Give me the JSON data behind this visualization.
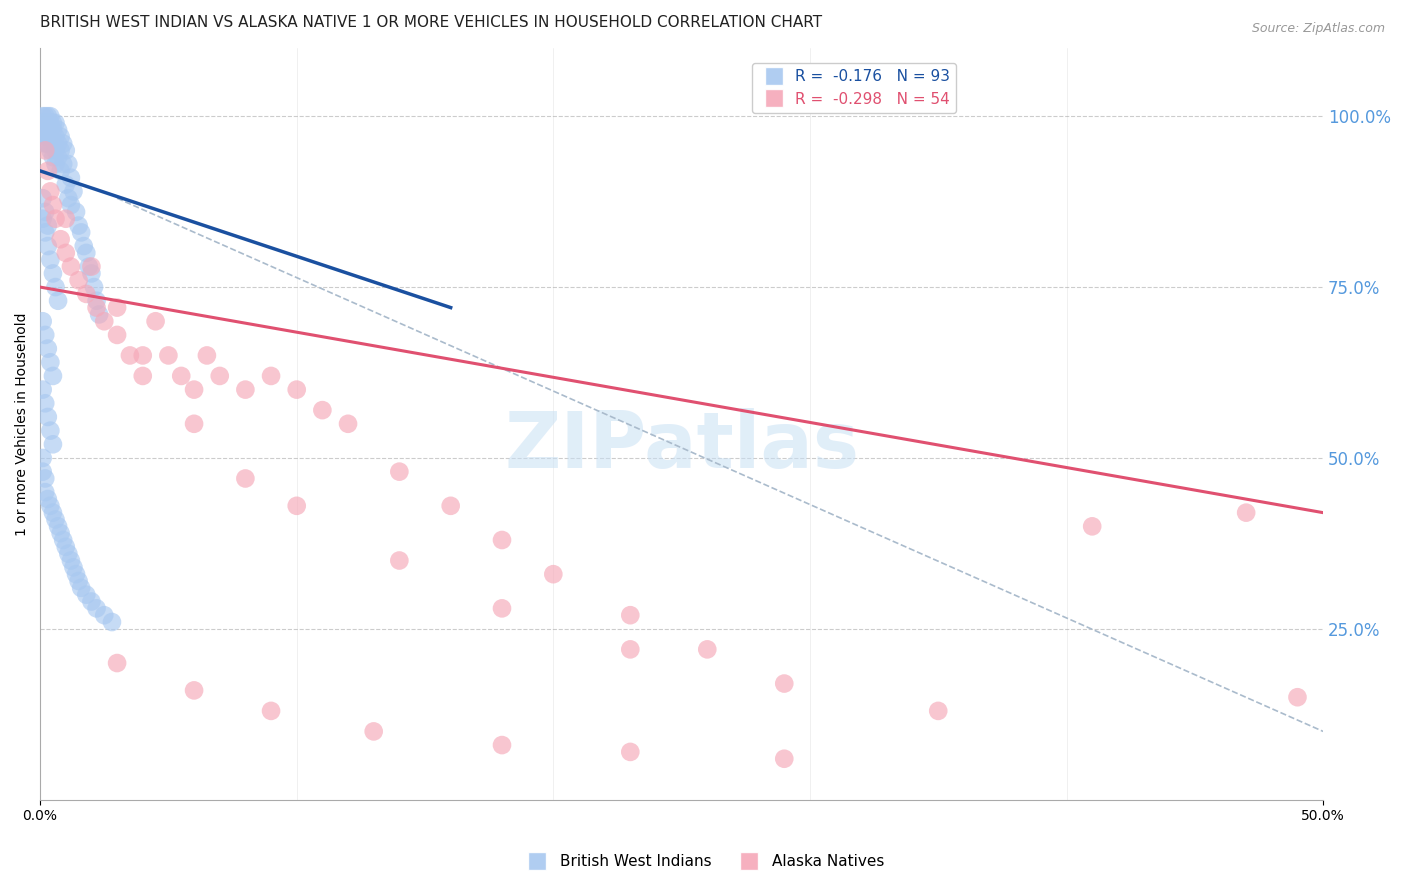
{
  "title": "BRITISH WEST INDIAN VS ALASKA NATIVE 1 OR MORE VEHICLES IN HOUSEHOLD CORRELATION CHART",
  "source": "Source: ZipAtlas.com",
  "ylabel": "1 or more Vehicles in Household",
  "xlim": [
    0.0,
    0.5
  ],
  "ylim": [
    0.0,
    1.1
  ],
  "yticks_right": [
    0.25,
    0.5,
    0.75,
    1.0
  ],
  "ytick_right_labels": [
    "25.0%",
    "50.0%",
    "75.0%",
    "100.0%"
  ],
  "xticks": [
    0.0,
    0.5
  ],
  "xtick_labels": [
    "0.0%",
    "50.0%"
  ],
  "blue_R": -0.176,
  "blue_N": 93,
  "pink_R": -0.298,
  "pink_N": 54,
  "blue_color": "#A8C8F0",
  "pink_color": "#F5A8B8",
  "blue_line_color": "#1A50A0",
  "pink_line_color": "#E05070",
  "dash_line_color": "#AABBCC",
  "legend_label_blue": "British West Indians",
  "legend_label_pink": "Alaska Natives",
  "blue_points_x": [
    0.001,
    0.001,
    0.001,
    0.002,
    0.002,
    0.002,
    0.002,
    0.002,
    0.003,
    0.003,
    0.003,
    0.003,
    0.003,
    0.004,
    0.004,
    0.004,
    0.004,
    0.005,
    0.005,
    0.005,
    0.005,
    0.006,
    0.006,
    0.006,
    0.006,
    0.007,
    0.007,
    0.007,
    0.008,
    0.008,
    0.008,
    0.009,
    0.009,
    0.01,
    0.01,
    0.011,
    0.011,
    0.012,
    0.012,
    0.013,
    0.014,
    0.015,
    0.016,
    0.017,
    0.018,
    0.019,
    0.02,
    0.021,
    0.022,
    0.023,
    0.001,
    0.001,
    0.002,
    0.002,
    0.003,
    0.003,
    0.004,
    0.005,
    0.006,
    0.007,
    0.001,
    0.002,
    0.003,
    0.004,
    0.005,
    0.001,
    0.002,
    0.003,
    0.004,
    0.005,
    0.001,
    0.001,
    0.002,
    0.002,
    0.003,
    0.004,
    0.005,
    0.006,
    0.007,
    0.008,
    0.009,
    0.01,
    0.011,
    0.012,
    0.013,
    0.014,
    0.015,
    0.016,
    0.018,
    0.02,
    0.022,
    0.025,
    0.028
  ],
  "blue_points_y": [
    1.0,
    0.99,
    0.98,
    1.0,
    0.99,
    0.98,
    0.97,
    0.96,
    1.0,
    0.99,
    0.98,
    0.97,
    0.96,
    1.0,
    0.99,
    0.97,
    0.95,
    0.99,
    0.98,
    0.96,
    0.94,
    0.99,
    0.97,
    0.95,
    0.93,
    0.98,
    0.96,
    0.94,
    0.97,
    0.95,
    0.92,
    0.96,
    0.93,
    0.95,
    0.9,
    0.93,
    0.88,
    0.91,
    0.87,
    0.89,
    0.86,
    0.84,
    0.83,
    0.81,
    0.8,
    0.78,
    0.77,
    0.75,
    0.73,
    0.71,
    0.88,
    0.85,
    0.86,
    0.83,
    0.84,
    0.81,
    0.79,
    0.77,
    0.75,
    0.73,
    0.7,
    0.68,
    0.66,
    0.64,
    0.62,
    0.6,
    0.58,
    0.56,
    0.54,
    0.52,
    0.5,
    0.48,
    0.47,
    0.45,
    0.44,
    0.43,
    0.42,
    0.41,
    0.4,
    0.39,
    0.38,
    0.37,
    0.36,
    0.35,
    0.34,
    0.33,
    0.32,
    0.31,
    0.3,
    0.29,
    0.28,
    0.27,
    0.26
  ],
  "pink_points_x": [
    0.002,
    0.003,
    0.004,
    0.005,
    0.006,
    0.008,
    0.01,
    0.012,
    0.015,
    0.018,
    0.022,
    0.025,
    0.03,
    0.035,
    0.04,
    0.045,
    0.05,
    0.055,
    0.06,
    0.065,
    0.07,
    0.08,
    0.09,
    0.1,
    0.11,
    0.12,
    0.14,
    0.16,
    0.18,
    0.2,
    0.23,
    0.26,
    0.01,
    0.02,
    0.03,
    0.04,
    0.06,
    0.08,
    0.1,
    0.14,
    0.18,
    0.23,
    0.29,
    0.35,
    0.41,
    0.47,
    0.49,
    0.03,
    0.06,
    0.09,
    0.13,
    0.18,
    0.23,
    0.29
  ],
  "pink_points_y": [
    0.95,
    0.92,
    0.89,
    0.87,
    0.85,
    0.82,
    0.8,
    0.78,
    0.76,
    0.74,
    0.72,
    0.7,
    0.68,
    0.65,
    0.62,
    0.7,
    0.65,
    0.62,
    0.6,
    0.65,
    0.62,
    0.6,
    0.62,
    0.6,
    0.57,
    0.55,
    0.48,
    0.43,
    0.38,
    0.33,
    0.27,
    0.22,
    0.85,
    0.78,
    0.72,
    0.65,
    0.55,
    0.47,
    0.43,
    0.35,
    0.28,
    0.22,
    0.17,
    0.13,
    0.4,
    0.42,
    0.15,
    0.2,
    0.16,
    0.13,
    0.1,
    0.08,
    0.07,
    0.06
  ],
  "blue_line_x": [
    0.0,
    0.16
  ],
  "blue_line_y": [
    0.92,
    0.72
  ],
  "pink_line_x": [
    0.0,
    0.5
  ],
  "pink_line_y": [
    0.75,
    0.42
  ],
  "dash_line_x": [
    0.03,
    0.5
  ],
  "dash_line_y": [
    0.88,
    0.1
  ],
  "watermark": "ZIPatlas",
  "background_color": "#FFFFFF",
  "grid_color": "#CCCCCC",
  "axis_color": "#AAAAAA",
  "right_label_color": "#5599DD",
  "title_color": "#222222",
  "title_fontsize": 11,
  "label_fontsize": 10,
  "tick_fontsize": 10,
  "legend_fontsize": 11
}
